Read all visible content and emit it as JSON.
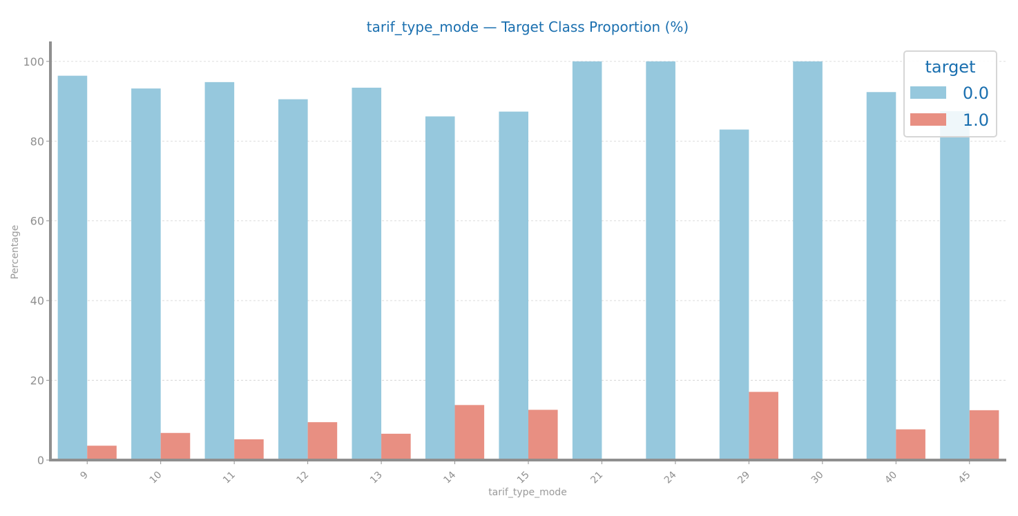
{
  "chart_data": {
    "type": "bar",
    "title": "tarif_type_mode — Target Class Proportion (%)",
    "xlabel": "tarif_type_mode",
    "ylabel": "Percentage",
    "categories": [
      "9",
      "10",
      "11",
      "12",
      "13",
      "14",
      "15",
      "21",
      "24",
      "29",
      "30",
      "40",
      "45"
    ],
    "series": [
      {
        "name": "0.0",
        "color": "#96c8dd",
        "values": [
          96.4,
          93.2,
          94.8,
          90.5,
          93.4,
          86.2,
          87.4,
          100,
          100,
          82.9,
          100,
          92.3,
          87.5
        ]
      },
      {
        "name": "1.0",
        "color": "#e88f82",
        "values": [
          3.6,
          6.8,
          5.2,
          9.5,
          6.6,
          13.8,
          12.6,
          0,
          0,
          17.1,
          0,
          7.7,
          12.5
        ]
      }
    ],
    "ylim": [
      0,
      105
    ],
    "yticks": [
      0,
      20,
      40,
      60,
      80,
      100
    ],
    "grid": true,
    "legend": {
      "title": "target",
      "position": "top-right"
    },
    "axis_color": "#8f8f8f",
    "grid_color": "#d0d0d0"
  }
}
